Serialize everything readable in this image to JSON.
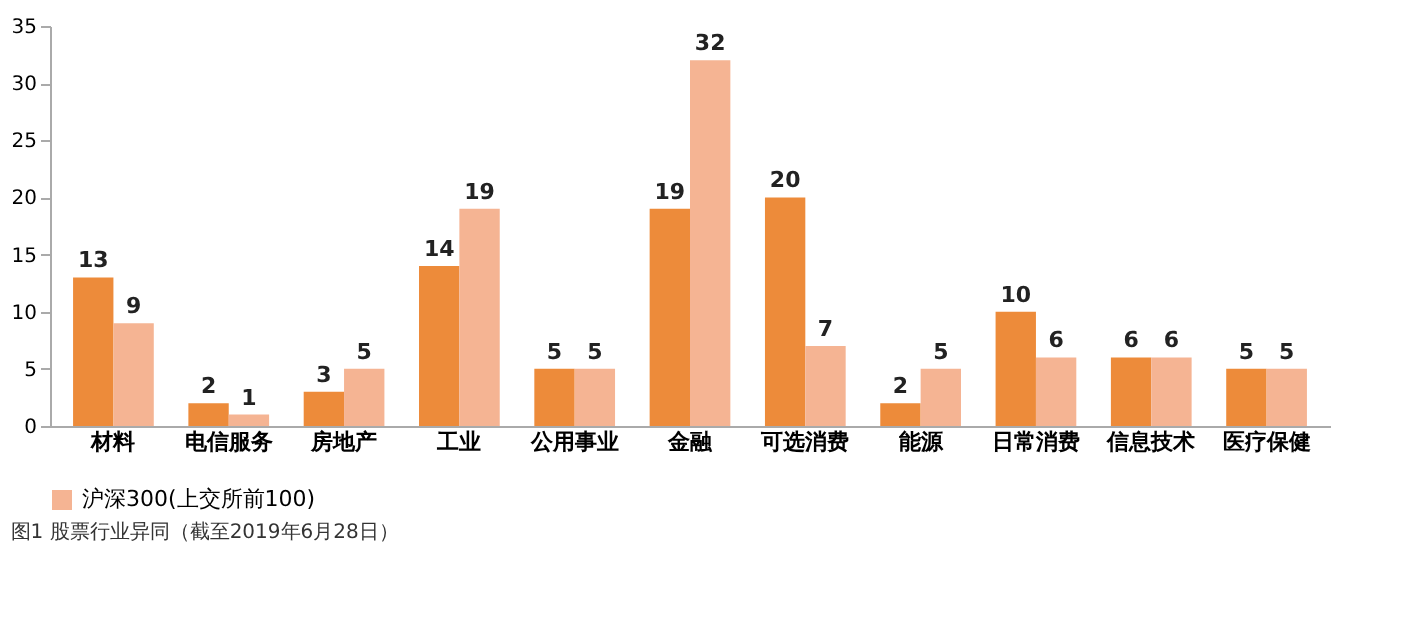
{
  "chart_data": {
    "type": "bar",
    "categories": [
      "材料",
      "电信服务",
      "房地产",
      "工业",
      "公用事业",
      "金融",
      "可选消费",
      "能源",
      "日常消费",
      "信息技术",
      "医疗保健"
    ],
    "series": [
      {
        "name": null,
        "color": "#ed8b3a",
        "values": [
          13,
          2,
          3,
          14,
          5,
          19,
          20,
          2,
          10,
          6,
          5
        ]
      },
      {
        "name": "沪深300(上交所前100)",
        "color": "#f5b493",
        "values": [
          9,
          1,
          5,
          19,
          5,
          32,
          7,
          5,
          6,
          6,
          5
        ]
      }
    ],
    "ylim": [
      0,
      35
    ],
    "yticks": [
      0,
      5,
      10,
      15,
      20,
      25,
      30,
      35
    ],
    "grid": false,
    "legend": "bottom",
    "data_labels": true,
    "annotations": [
      "图1 股票行业异同（截至2019年6月28日）"
    ]
  }
}
